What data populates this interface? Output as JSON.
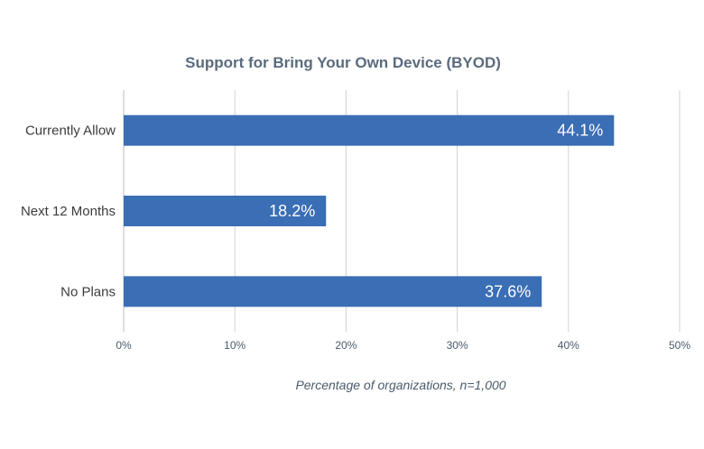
{
  "chart_data": {
    "type": "bar",
    "orientation": "horizontal",
    "title": "Support for Bring Your Own Device (BYOD)",
    "categories": [
      "Currently Allow",
      "Next 12 Months",
      "No Plans"
    ],
    "values": [
      44.1,
      18.2,
      37.6
    ],
    "data_labels": [
      "44.1%",
      "18.2%",
      "37.6%"
    ],
    "xlabel": "Percentage of organizations, n=1,000",
    "ylabel": "",
    "xlim": [
      0,
      50
    ],
    "xticks": [
      0,
      10,
      20,
      30,
      40,
      50
    ],
    "xtick_labels": [
      "0%",
      "10%",
      "20%",
      "30%",
      "40%",
      "50%"
    ],
    "grid": true,
    "bar_color": "#3a6eb5"
  }
}
